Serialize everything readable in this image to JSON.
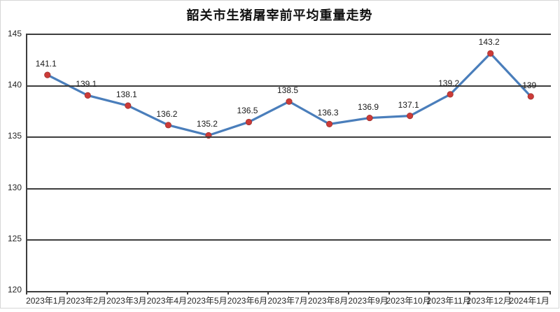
{
  "title": "韶关市生猪屠宰前平均重量走势",
  "chart_data": {
    "type": "line",
    "title": "韶关市生猪屠宰前平均重量走势",
    "categories": [
      "2023年1月",
      "2023年2月",
      "2023年3月",
      "2023年4月",
      "2023年5月",
      "2023年6月",
      "2023年7月",
      "2023年8月",
      "2023年9月",
      "2023年10月",
      "2023年11月",
      "2023年12月",
      "2024年1月"
    ],
    "values": [
      141.1,
      139.1,
      138.1,
      136.2,
      135.2,
      136.5,
      138.5,
      136.3,
      136.9,
      137.1,
      139.2,
      143.2,
      139
    ],
    "point_labels": [
      "141.1",
      "139.1",
      "138.1",
      "136.2",
      "135.2",
      "136.5",
      "138.5",
      "136.3",
      "136.9",
      "137.1",
      "139.2",
      "143.2",
      "139"
    ],
    "xlabel": "",
    "ylabel": "",
    "ylim": [
      120,
      145
    ],
    "yticks": [
      145,
      140,
      135,
      130,
      125,
      120
    ],
    "ytick_labels": [
      "145",
      "140",
      "135",
      "130",
      "125",
      "120"
    ],
    "grid": "horizontal",
    "legend": "none",
    "colors": {
      "line": "#4a7ebb",
      "marker": "#cc3b38",
      "marker_border": "#9e3330",
      "grid": "#3d3d3d",
      "axis_text": "#262626",
      "title_text": "#111111"
    }
  }
}
